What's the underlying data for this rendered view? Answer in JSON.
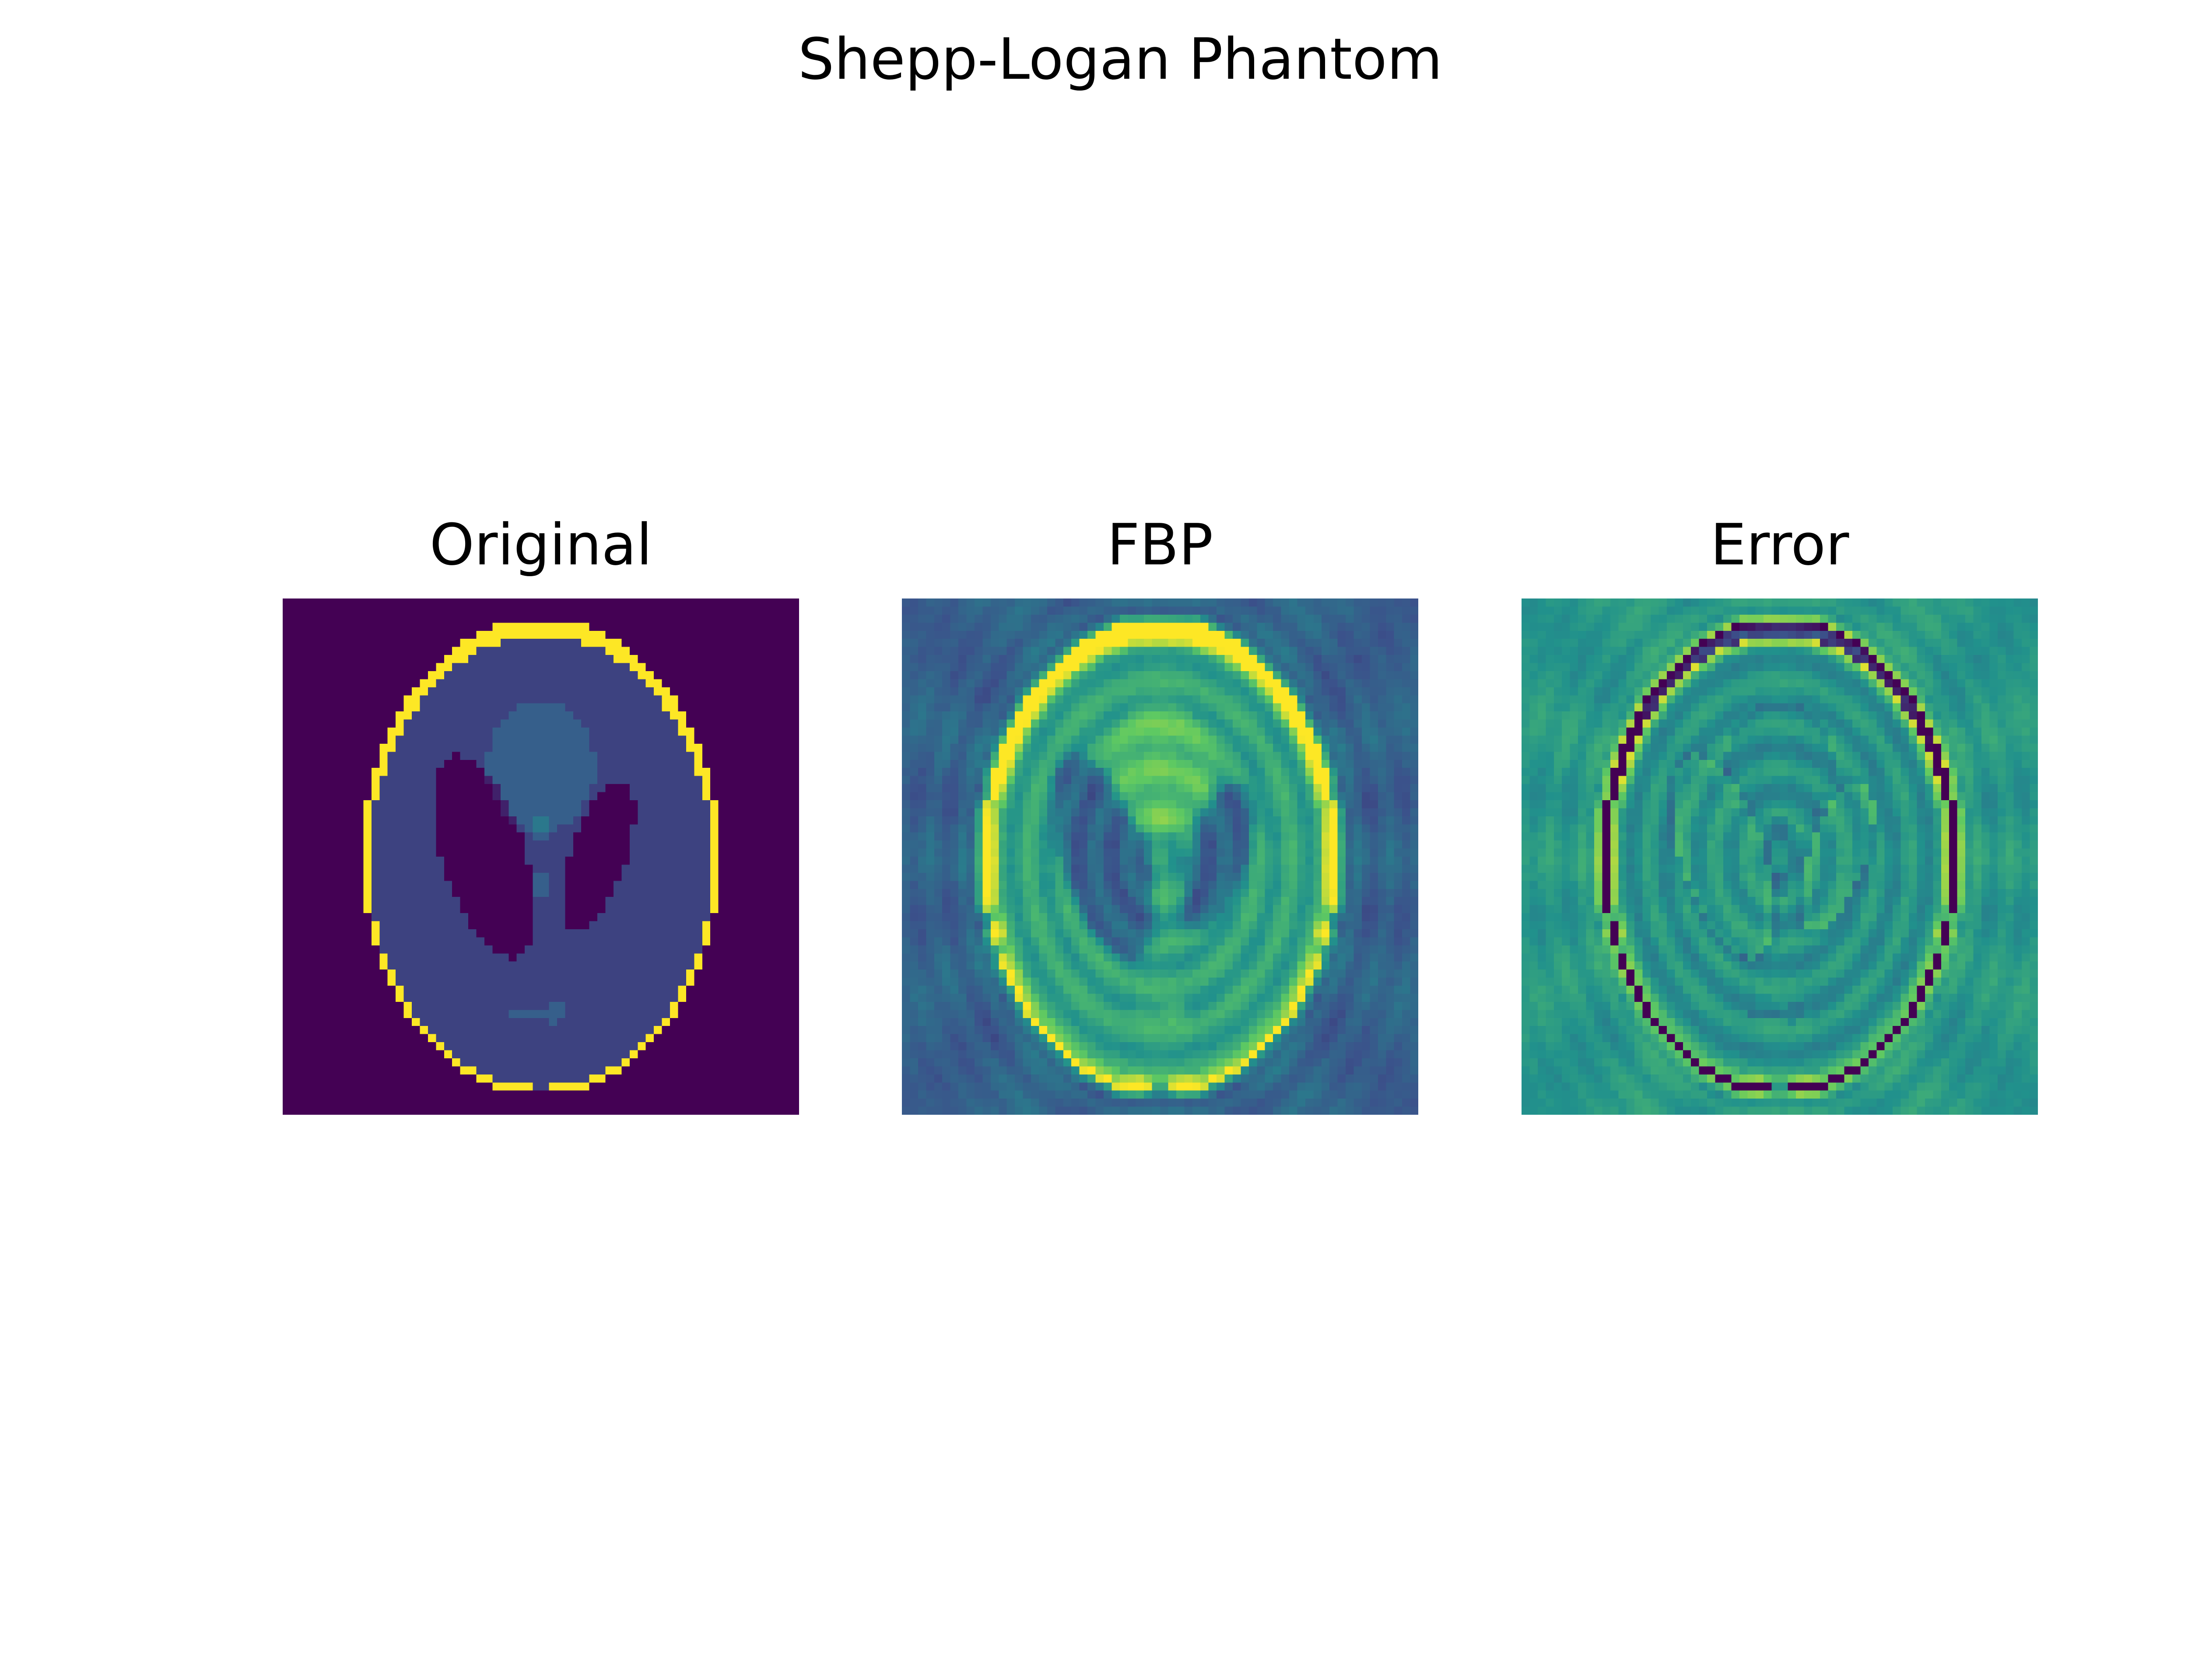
{
  "figure": {
    "title": "Shepp-Logan Phantom"
  },
  "panels": [
    {
      "title": "Original",
      "kind": "original"
    },
    {
      "title": "FBP",
      "kind": "fbp"
    },
    {
      "title": "Error",
      "kind": "error"
    }
  ],
  "colormap": {
    "name": "viridis",
    "stops": [
      "#440154",
      "#3b528b",
      "#21918c",
      "#5ec962",
      "#fde725"
    ]
  }
}
